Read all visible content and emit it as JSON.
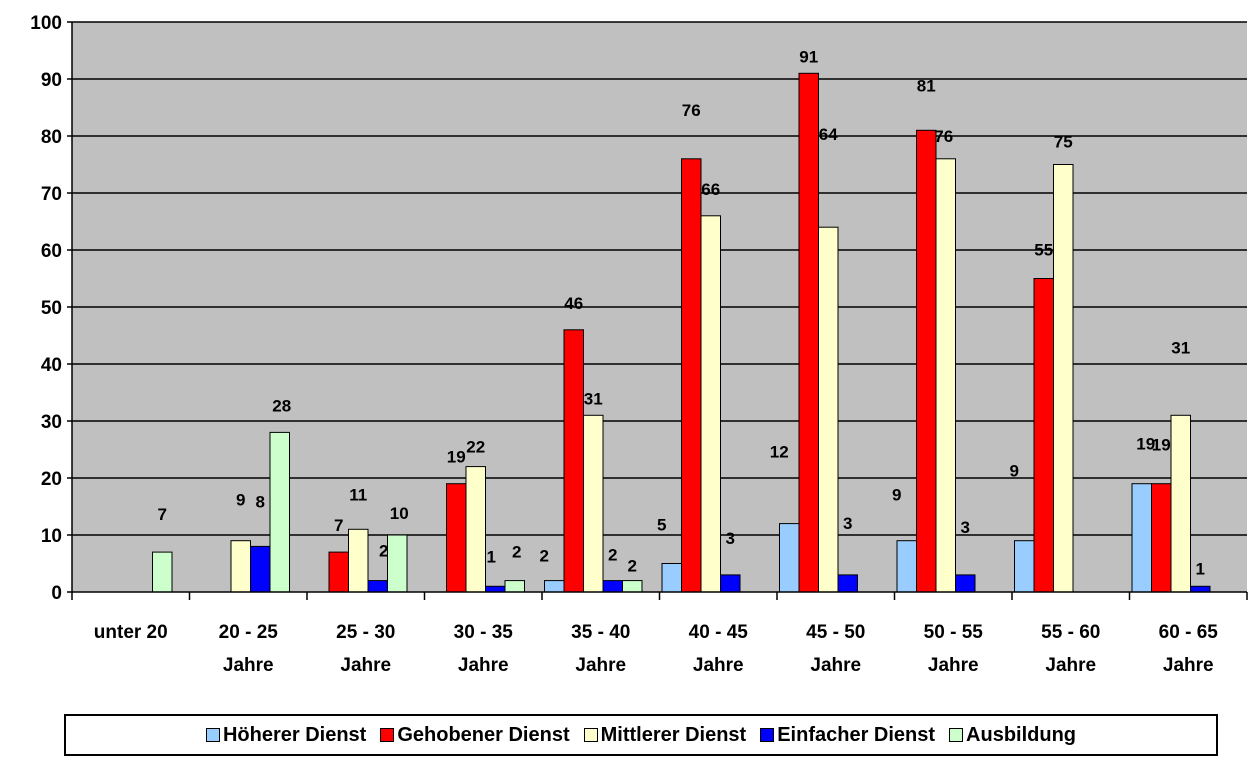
{
  "chart_data": {
    "type": "bar",
    "categories": [
      [
        "unter 20",
        ""
      ],
      [
        "20 - 25",
        "Jahre"
      ],
      [
        "25 - 30",
        "Jahre"
      ],
      [
        "30 - 35",
        "Jahre"
      ],
      [
        "35 - 40",
        "Jahre"
      ],
      [
        "40 - 45",
        "Jahre"
      ],
      [
        "45 - 50",
        "Jahre"
      ],
      [
        "50 - 55",
        "Jahre"
      ],
      [
        "55 - 60",
        "Jahre"
      ],
      [
        "60 - 65",
        "Jahre"
      ]
    ],
    "series": [
      {
        "name": "Höherer Dienst",
        "color": "#99CCFF",
        "values": [
          null,
          null,
          null,
          null,
          2,
          5,
          12,
          9,
          9,
          19
        ]
      },
      {
        "name": "Gehobener Dienst",
        "color": "#FF0000",
        "values": [
          null,
          null,
          7,
          19,
          46,
          76,
          91,
          81,
          55,
          19
        ]
      },
      {
        "name": "Mittlerer Dienst",
        "color": "#FFFFCC",
        "values": [
          null,
          9,
          11,
          22,
          31,
          66,
          64,
          76,
          75,
          31
        ]
      },
      {
        "name": "Einfacher Dienst",
        "color": "#0000FF",
        "values": [
          null,
          8,
          2,
          1,
          2,
          3,
          3,
          3,
          null,
          1
        ]
      },
      {
        "name": "Ausbildung",
        "color": "#CCFFCC",
        "values": [
          7,
          28,
          10,
          2,
          2,
          null,
          null,
          null,
          null,
          null
        ]
      }
    ],
    "yticks": [
      0,
      10,
      20,
      30,
      40,
      50,
      60,
      70,
      80,
      90,
      100
    ],
    "ylim": [
      0,
      100
    ],
    "grid": true,
    "plot_background": "#C0C0C0",
    "legend_position": "bottom"
  }
}
